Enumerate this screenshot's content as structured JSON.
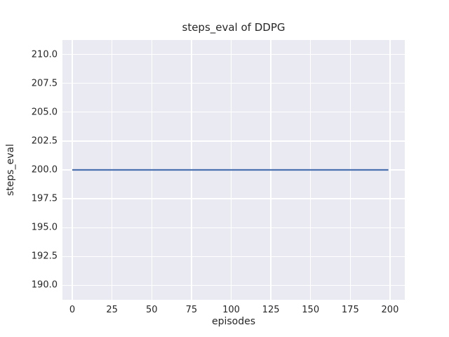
{
  "chart_data": {
    "type": "line",
    "title": "steps_eval of DDPG",
    "xlabel": "episodes",
    "ylabel": "steps_eval",
    "style": "seaborn-darkgrid",
    "grid": true,
    "legend": false,
    "xlim": [
      -6.2,
      209.3
    ],
    "ylim": [
      188.75,
      211.25
    ],
    "x_ticks": [
      0,
      25,
      50,
      75,
      100,
      125,
      150,
      175,
      200
    ],
    "x_tick_labels": [
      "0",
      "25",
      "50",
      "75",
      "100",
      "125",
      "150",
      "175",
      "200"
    ],
    "y_ticks": [
      190,
      192.5,
      195,
      197.5,
      200,
      202.5,
      205,
      207.5,
      210
    ],
    "y_tick_labels": [
      "190.0",
      "192.5",
      "195.0",
      "197.5",
      "200.0",
      "202.5",
      "205.0",
      "207.5",
      "210.0"
    ],
    "colors": {
      "figure_background": "#ffffff",
      "plot_background": "#eaeaf2",
      "gridline": "#ffffff",
      "text": "#262626",
      "line": "#4c72b0"
    },
    "series": [
      {
        "name": "DDPG",
        "color": "#4c72b0",
        "x": [
          0,
          199
        ],
        "y": [
          200.0,
          200.0
        ]
      }
    ]
  }
}
